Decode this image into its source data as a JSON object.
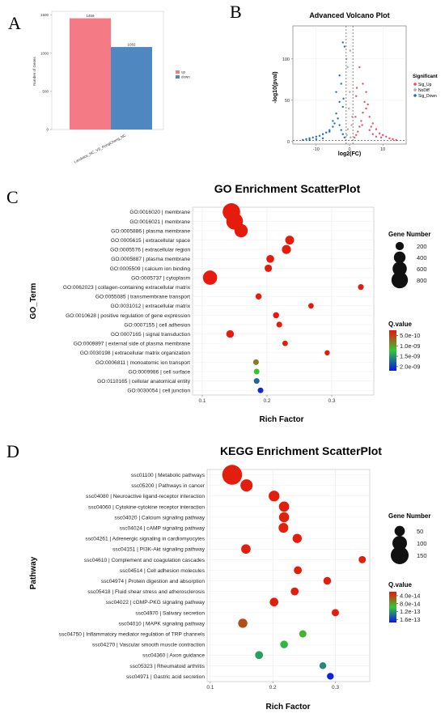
{
  "panels": {
    "A": "A",
    "B": "B",
    "C": "C",
    "D": "D"
  },
  "chart_data": [
    {
      "panel": "A",
      "type": "bar",
      "ylabel": "Number of Genes",
      "xlabel": "",
      "categories": [
        "Landrace_NC_VS_RongChang_NC"
      ],
      "series": [
        {
          "name": "up",
          "values": [
            1459
          ],
          "color": "#F47A86"
        },
        {
          "name": "down",
          "values": [
            1082
          ],
          "color": "#4F87C1"
        }
      ],
      "ylim": [
        0,
        1550
      ],
      "yticks": [
        0,
        500,
        1000,
        1500
      ],
      "legend_position": "right"
    },
    {
      "panel": "B",
      "type": "scatter",
      "title": "Advanced Volcano Plot",
      "xlabel": "log2(FC)",
      "ylabel": "-log10(pval)",
      "xlim": [
        -17,
        17
      ],
      "ylim": [
        -3,
        140
      ],
      "xticks": [
        -10,
        0,
        10
      ],
      "yticks": [
        0,
        50,
        100
      ],
      "legend_title": "Significant",
      "legend": [
        {
          "name": "Sig_Up",
          "color": "#E8505B"
        },
        {
          "name": "NoDiff",
          "color": "#AAAAAA"
        },
        {
          "name": "Sig_Down",
          "color": "#1F6FB4"
        }
      ],
      "vlines": [
        -1,
        1
      ],
      "hline": 1.3,
      "points_up": [
        [
          1.5,
          5
        ],
        [
          2,
          8
        ],
        [
          2.5,
          12
        ],
        [
          3,
          18
        ],
        [
          3.5,
          25
        ],
        [
          4,
          35
        ],
        [
          4.5,
          48
        ],
        [
          5,
          60
        ],
        [
          5.5,
          45
        ],
        [
          6,
          30
        ],
        [
          7,
          22
        ],
        [
          8,
          15
        ],
        [
          9,
          10
        ],
        [
          10,
          8
        ],
        [
          11,
          6
        ],
        [
          12,
          4
        ],
        [
          3,
          90
        ],
        [
          4,
          70
        ],
        [
          2,
          55
        ],
        [
          5,
          40
        ],
        [
          6,
          14
        ],
        [
          7,
          9
        ],
        [
          8,
          6
        ],
        [
          1.8,
          30
        ],
        [
          2.2,
          65
        ],
        [
          3.8,
          20
        ],
        [
          6.5,
          18
        ],
        [
          9.5,
          5
        ],
        [
          13,
          3
        ],
        [
          14,
          2
        ]
      ],
      "points_down": [
        [
          -1.5,
          5
        ],
        [
          -2,
          9
        ],
        [
          -2.5,
          14
        ],
        [
          -3,
          20
        ],
        [
          -3.5,
          28
        ],
        [
          -4,
          34
        ],
        [
          -4.5,
          22
        ],
        [
          -5,
          18
        ],
        [
          -6,
          14
        ],
        [
          -7,
          11
        ],
        [
          -8,
          9
        ],
        [
          -9,
          7
        ],
        [
          -10,
          6
        ],
        [
          -11,
          5
        ],
        [
          -12,
          4
        ],
        [
          -13,
          3
        ],
        [
          -14,
          2
        ],
        [
          -2,
          42
        ],
        [
          -3,
          48
        ],
        [
          -1.8,
          52
        ],
        [
          -4,
          60
        ],
        [
          -2.5,
          70
        ],
        [
          -3,
          80
        ],
        [
          -5,
          25
        ],
        [
          -6,
          12
        ],
        [
          -1.5,
          115
        ],
        [
          -2,
          120
        ],
        [
          -8,
          4
        ],
        [
          -10,
          3
        ],
        [
          -12,
          2
        ]
      ],
      "points_nodiff": [
        [
          -0.8,
          8
        ],
        [
          -0.5,
          15
        ],
        [
          0.3,
          5
        ],
        [
          0.6,
          20
        ],
        [
          -0.2,
          40
        ],
        [
          0.1,
          60
        ],
        [
          -0.6,
          90
        ],
        [
          0.8,
          30
        ],
        [
          -0.9,
          100
        ],
        [
          0.2,
          110
        ]
      ]
    },
    {
      "panel": "C",
      "type": "scatter",
      "title": "GO Enrichment ScatterPlot",
      "xlabel": "Rich Factor",
      "ylabel": "GO_Term",
      "xlim": [
        0.085,
        0.365
      ],
      "xticks": [
        0.1,
        0.2,
        0.3
      ],
      "size_legend_title": "Gene Number",
      "size_legend": [
        200,
        400,
        600,
        800
      ],
      "color_legend_title": "Q.value",
      "color_legend": [
        "5.0e-10",
        "1.0e-09",
        "1.5e-09",
        "2.0e-09"
      ],
      "q_range": [
        2.5e-10,
        2.2e-09
      ],
      "categories": [
        "GO:0016020 | membrane",
        "GO:0016021 | membrane",
        "GO:0005886 | plasma membrane",
        "GO:0005615 | extracellular space",
        "GO:0005576 | extracellular region",
        "GO:0005887 | plasma membrane",
        "GO:0005509 | calcium ion binding",
        "GO:0005737 | cytoplasm",
        "GO:0062023 | collagen-containing extracellular matrix",
        "GO:0055085 | transmembrane transport",
        "GO:0031012 | extracellular matrix",
        "GO:0010628 | positive regulation of gene expression",
        "GO:0007155 | cell adhesion",
        "GO:0007165 | signal transduction",
        "GO:0009897 | external side of plasma membrane",
        "GO:0030198 | extracellular matrix organization",
        "GO:0006811 | monoatomic ion transport",
        "GO:0009986 | cell surface",
        "GO:0110165 | cellular anatomical entity",
        "GO:0030054 | cell junction"
      ],
      "x": [
        0.145,
        0.15,
        0.16,
        0.235,
        0.23,
        0.205,
        0.202,
        0.112,
        0.345,
        0.187,
        0.268,
        0.214,
        0.219,
        0.143,
        0.228,
        0.293,
        0.183,
        0.184,
        0.184,
        0.19
      ],
      "gene_number": [
        900,
        820,
        520,
        230,
        240,
        180,
        160,
        600,
        100,
        110,
        90,
        110,
        100,
        170,
        90,
        80,
        95,
        95,
        95,
        95
      ],
      "q_value": [
        3e-10,
        3e-10,
        3e-10,
        3e-10,
        3e-10,
        3e-10,
        3e-10,
        3e-10,
        3e-10,
        3e-10,
        3e-10,
        3e-10,
        3e-10,
        3e-10,
        3e-10,
        3e-10,
        8e-10,
        1.2e-09,
        1.75e-09,
        2.1e-09
      ]
    },
    {
      "panel": "D",
      "type": "scatter",
      "title": "KEGG Enrichment ScatterPlot",
      "xlabel": "Rich Factor",
      "ylabel": "Pathway",
      "xlim": [
        0.095,
        0.355
      ],
      "xticks": [
        0.1,
        0.2,
        0.3
      ],
      "size_legend_title": "Gene Number",
      "size_legend": [
        50,
        100,
        150
      ],
      "color_legend_title": "Q.value",
      "color_legend": [
        "4.0e-14",
        "8.0e-14",
        "1.2e-13",
        "1.6e-13"
      ],
      "q_range": [
        2e-14,
        1.75e-13
      ],
      "categories": [
        "ssc01100 | Metabolic pathways",
        "ssc05200 | Pathways in cancer",
        "ssc04080 | Neuroactive ligand-receptor interaction",
        "ssc04060 | Cytokine-cytokine receptor interaction",
        "ssc04020 | Calcium signaling pathway",
        "ssc04024 | cAMP signaling pathway",
        "ssc04261 | Adrenergic signaling in cardiomyocytes",
        "ssc04151 | PI3K-Akt signaling pathway",
        "ssc04610 | Complement and coagulation cascades",
        "ssc04514 | Cell adhesion molecules",
        "ssc04974 | Protein digestion and absorption",
        "ssc05418 | Fluid shear stress and atherosclerosis",
        "ssc04022 | cGMP-PKG signaling pathway",
        "ssc04970 | Salivary secretion",
        "ssc04010 | MAPK signaling pathway",
        "ssc04750 | Inflammatory mediator regulation of TRP channels",
        "ssc04270 | Vascular smooth muscle contraction",
        "ssc04360 | Axon guidance",
        "ssc05323 | Rheumatoid arthritis",
        "ssc04971 | Gastric acid secretion"
      ],
      "x": [
        0.135,
        0.158,
        0.202,
        0.218,
        0.218,
        0.217,
        0.239,
        0.157,
        0.343,
        0.24,
        0.287,
        0.235,
        0.202,
        0.3,
        0.152,
        0.248,
        0.218,
        0.178,
        0.28,
        0.292
      ],
      "gene_number": [
        185,
        70,
        55,
        50,
        48,
        45,
        40,
        42,
        25,
        30,
        28,
        30,
        35,
        25,
        40,
        25,
        28,
        30,
        22,
        22
      ],
      "q_value": [
        2.5e-14,
        2.5e-14,
        2.5e-14,
        2.5e-14,
        2.5e-14,
        2.5e-14,
        2.5e-14,
        2.5e-14,
        2.5e-14,
        2.5e-14,
        2.5e-14,
        2.5e-14,
        2.5e-14,
        2.5e-14,
        4.5e-14,
        8.8e-14,
        1.05e-13,
        1.15e-13,
        1.25e-13,
        1.7e-13
      ]
    }
  ]
}
